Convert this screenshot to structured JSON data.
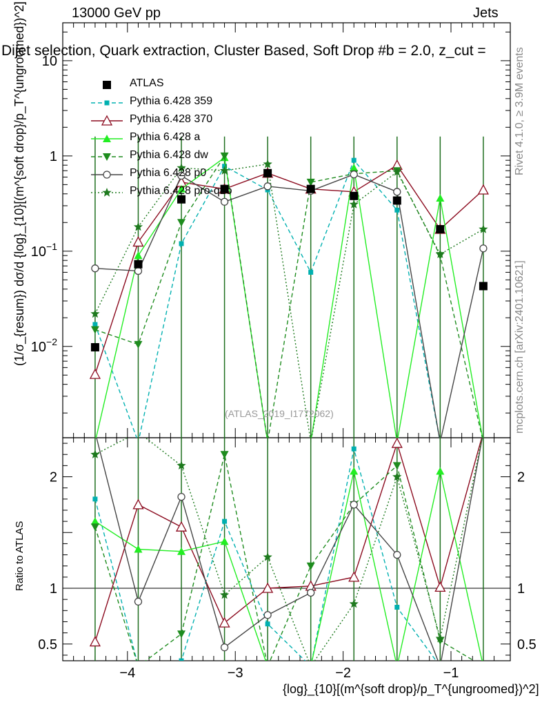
{
  "header": {
    "energy": "13000 GeV pp",
    "process": "Jets",
    "title": "Dijet selection, Quark extraction, Cluster Based, Soft Drop #b = 2.0, z_cut =",
    "title_sub": "cut"
  },
  "side_labels": {
    "rivet": "Rivet 4.1.0, ≥ 3.9M events",
    "mcplots": "mcplots.cern.ch [arXiv:2401.10621]"
  },
  "watermark": "(ATLAS_2019_I1772062)",
  "axes": {
    "ylabel_main": "(1/σ_{resum}) dσ/d {log}_{10}[(m^{soft drop}/p_T^{ungroomed})^2]",
    "ylabel_ratio": "Ratio to ATLAS",
    "xlabel": "{log}_{10}[(m^{soft drop}/p_T^{ungroomed})^2]",
    "main_ytick_labels": [
      "10^{-2}",
      "10^{-1}",
      "1",
      "10"
    ],
    "ratio_ytick_labels": [
      "0.5",
      "1",
      "2"
    ],
    "xtick_labels": [
      "−4",
      "−3",
      "−2",
      "−1"
    ]
  },
  "legend": [
    {
      "label": "ATLAS",
      "color": "#000000",
      "marker": "square-filled",
      "dash": "none"
    },
    {
      "label": "Pythia 6.428 359",
      "color": "#00b0b0",
      "marker": "square-small",
      "dash": "6,4"
    },
    {
      "label": "Pythia 6.428 370",
      "color": "#8b0a1e",
      "marker": "triangle-open",
      "dash": "none"
    },
    {
      "label": "Pythia 6.428 a",
      "color": "#22ee22",
      "marker": "triangle-filled",
      "dash": "none"
    },
    {
      "label": "Pythia 6.428 dw",
      "color": "#1e8c1e",
      "marker": "triangle-down-filled",
      "dash": "6,4"
    },
    {
      "label": "Pythia 6.428 p0",
      "color": "#444444",
      "marker": "circle-open",
      "dash": "none"
    },
    {
      "label": "Pythia 6.428 pro-q2o",
      "color": "#1e7a1e",
      "marker": "star",
      "dash": "2,3"
    }
  ],
  "chart_data": {
    "type": "line",
    "xlabel": "{log}_{10}[(m^{soft drop}/p_T^{ungroomed})^2]",
    "ylabel": "(1/σ_{resum}) dσ/d {log}_{10}[(m^{soft drop}/p_T^{ungroomed})^2]",
    "xlim": [
      -4.6,
      -0.45
    ],
    "ylim": [
      0.0011,
      25
    ],
    "yscale": "log",
    "ratio_ylim": [
      0.35,
      2.35
    ],
    "x": [
      -4.3,
      -3.9,
      -3.5,
      -3.1,
      -2.7,
      -2.3,
      -1.9,
      -1.5,
      -1.1,
      -0.7
    ],
    "series": [
      {
        "name": "ATLAS",
        "values": [
          0.0098,
          0.073,
          0.35,
          0.45,
          0.66,
          0.45,
          0.38,
          0.34,
          0.17,
          0.043
        ]
      },
      {
        "name": "Pythia 6.428 359",
        "values": [
          0.017,
          0.0008,
          0.12,
          0.78,
          0.44,
          0.06,
          0.9,
          0.27,
          0.0008,
          0.0008
        ]
      },
      {
        "name": "Pythia 6.428 370",
        "values": [
          0.0051,
          0.125,
          0.53,
          0.45,
          0.66,
          0.45,
          0.42,
          0.8,
          0.17,
          0.44
        ]
      },
      {
        "name": "Pythia 6.428 a",
        "values": [
          0.0008,
          0.09,
          0.45,
          0.96,
          0.0008,
          0.0008,
          0.75,
          0.0008,
          0.36,
          0.0008
        ]
      },
      {
        "name": "Pythia 6.428 dw",
        "values": [
          0.015,
          0.0105,
          0.2,
          1.0,
          0.0008,
          0.53,
          0.65,
          0.7,
          0.09,
          0.0008
        ]
      },
      {
        "name": "Pythia 6.428 p0",
        "values": [
          0.066,
          0.062,
          0.62,
          0.33,
          0.48,
          0.43,
          0.64,
          0.42,
          0.0008,
          0.107
        ]
      },
      {
        "name": "Pythia 6.428 pro-q2o",
        "values": [
          0.022,
          0.18,
          0.75,
          0.7,
          0.82,
          0.0008,
          0.31,
          0.68,
          0.093,
          0.17
        ]
      }
    ],
    "ratio_series": [
      {
        "name": "Pythia 6.428 359",
        "values": [
          1.8,
          0.1,
          0.35,
          1.6,
          0.68,
          0.13,
          2.25,
          0.83,
          0.1,
          0.1
        ]
      },
      {
        "name": "Pythia 6.428 370",
        "values": [
          0.52,
          1.75,
          1.55,
          0.69,
          1.0,
          1.02,
          1.1,
          2.3,
          1.01,
          3.0
        ]
      },
      {
        "name": "Pythia 6.428 a",
        "values": [
          1.6,
          1.35,
          1.33,
          1.42,
          0.1,
          0.1,
          2.05,
          0.1,
          2.05,
          0.1
        ]
      },
      {
        "name": "Pythia 6.428 dw",
        "values": [
          1.55,
          0.14,
          0.59,
          2.2,
          0.1,
          1.2,
          1.75,
          2.1,
          0.53,
          0.1
        ]
      },
      {
        "name": "Pythia 6.428 p0",
        "values": [
          6.7,
          0.88,
          1.82,
          0.47,
          0.76,
          0.96,
          1.75,
          1.3,
          0.1,
          2.4
        ]
      },
      {
        "name": "Pythia 6.428 pro-q2o",
        "values": [
          2.2,
          2.4,
          2.1,
          0.94,
          1.28,
          0.1,
          0.86,
          2.0,
          0.55,
          4.0
        ]
      }
    ]
  }
}
